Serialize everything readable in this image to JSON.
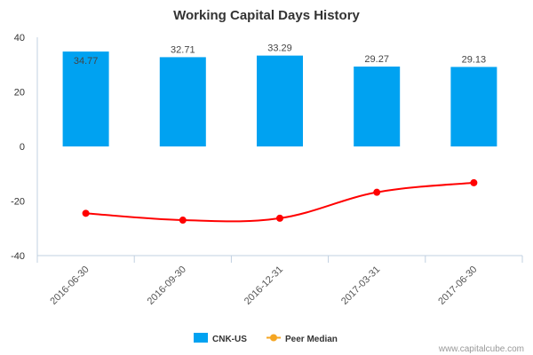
{
  "chart_data": {
    "type": "bar",
    "title": "Working Capital Days History",
    "categories": [
      "2016-06-30",
      "2016-09-30",
      "2016-12-31",
      "2017-03-31",
      "2017-06-30"
    ],
    "series": [
      {
        "name": "CNK-US",
        "type": "bar",
        "color": "#00a2f1",
        "values": [
          34.77,
          32.71,
          33.29,
          29.27,
          29.13
        ],
        "labels": [
          "34.77",
          "32.71",
          "33.29",
          "29.27",
          "29.13"
        ]
      },
      {
        "name": "Peer Median",
        "type": "line",
        "color": "#ff0000",
        "legend_color": "#f5a623",
        "values": [
          -24.5,
          -27.0,
          -26.3,
          -16.8,
          -13.3
        ]
      }
    ],
    "ylim": [
      -40,
      40
    ],
    "yticks": [
      40,
      20,
      0,
      -20,
      -40
    ],
    "ytick_labels": [
      "40",
      "20",
      "0",
      "-20",
      "-40"
    ],
    "xlabel": "",
    "ylabel": "",
    "legend": {
      "position": "bottom-center"
    },
    "grid": false
  },
  "credit": "www.capitalcube.com"
}
